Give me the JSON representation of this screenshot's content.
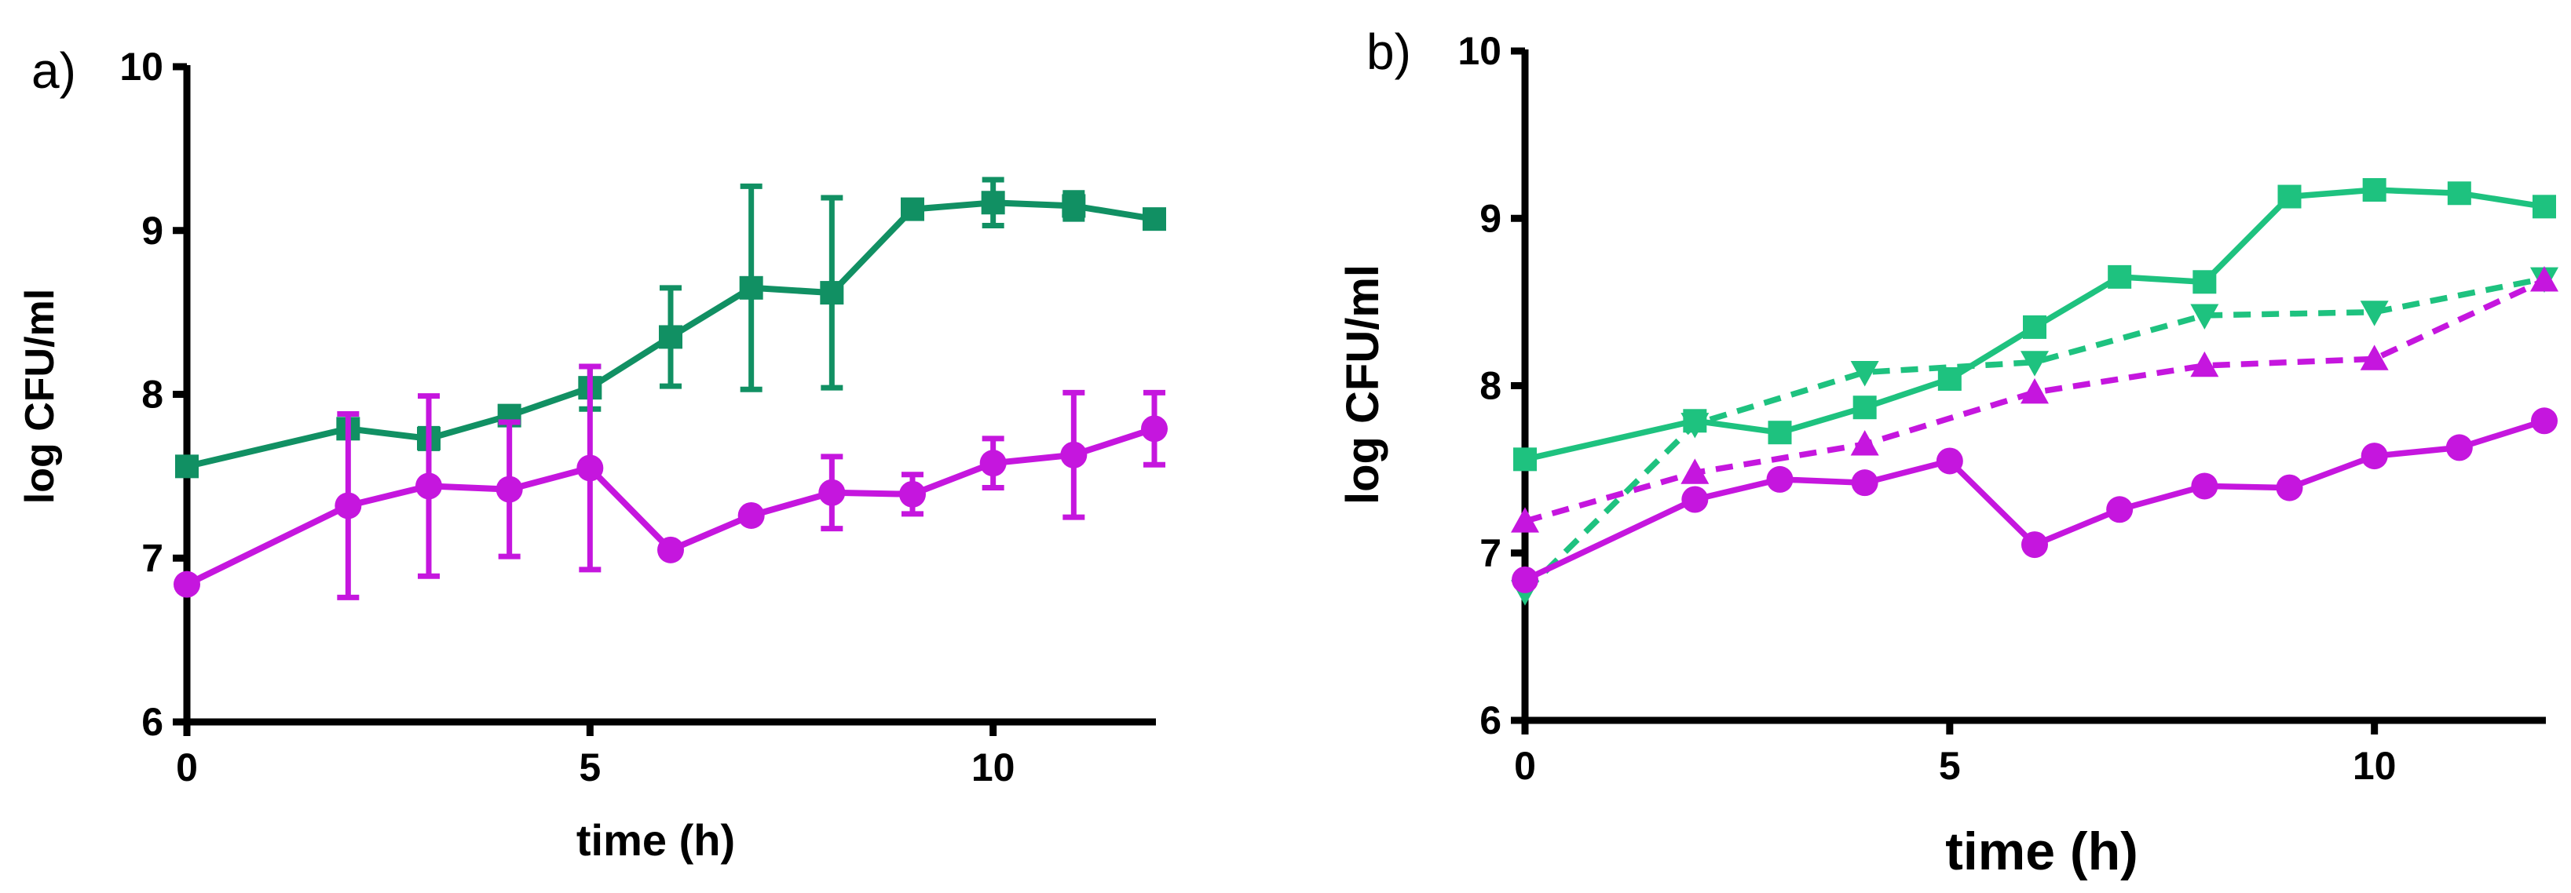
{
  "chart_data": [
    {
      "panel": "a)",
      "type": "line",
      "xlabel": "time (h)",
      "ylabel": "log CFU/ml",
      "xlim": [
        0,
        12
      ],
      "ylim": [
        6,
        10
      ],
      "xticks": [
        0,
        5,
        10
      ],
      "yticks": [
        6,
        7,
        8,
        9,
        10
      ],
      "series": [
        {
          "name": "green squares",
          "color": "#119063",
          "marker": "square",
          "dashed": false,
          "points": [
            {
              "x": 0,
              "y": 7.56
            },
            {
              "x": 2,
              "y": 7.79,
              "err": 0.05
            },
            {
              "x": 3,
              "y": 7.73,
              "err": 0.06
            },
            {
              "x": 4,
              "y": 7.87,
              "err": 0.04
            },
            {
              "x": 5,
              "y": 8.04,
              "err": 0.13
            },
            {
              "x": 6,
              "y": 8.35,
              "err": 0.3
            },
            {
              "x": 7,
              "y": 8.65,
              "err": 0.62
            },
            {
              "x": 8,
              "y": 8.62,
              "err": 0.58
            },
            {
              "x": 9,
              "y": 9.13,
              "err": 0.04
            },
            {
              "x": 10,
              "y": 9.17,
              "err": 0.14
            },
            {
              "x": 11,
              "y": 9.15,
              "err": 0.08
            },
            {
              "x": 12,
              "y": 9.07
            }
          ]
        },
        {
          "name": "magenta circles",
          "color": "#c516de",
          "marker": "circle",
          "dashed": false,
          "points": [
            {
              "x": 0,
              "y": 6.84
            },
            {
              "x": 2,
              "y": 7.32,
              "err": 0.56
            },
            {
              "x": 3,
              "y": 7.44,
              "err": 0.55
            },
            {
              "x": 4,
              "y": 7.42,
              "err": 0.41
            },
            {
              "x": 5,
              "y": 7.55,
              "err": 0.62
            },
            {
              "x": 6,
              "y": 7.05
            },
            {
              "x": 7,
              "y": 7.26
            },
            {
              "x": 8,
              "y": 7.4,
              "err": 0.22
            },
            {
              "x": 9,
              "y": 7.39,
              "err": 0.12
            },
            {
              "x": 10,
              "y": 7.58,
              "err": 0.15
            },
            {
              "x": 11,
              "y": 7.63,
              "err": 0.38
            },
            {
              "x": 12,
              "y": 7.79,
              "err": 0.22
            }
          ]
        }
      ]
    },
    {
      "panel": "b)",
      "type": "line",
      "xlabel": "time (h)",
      "ylabel": "log CFU/ml",
      "xlim": [
        0,
        12
      ],
      "ylim": [
        6,
        10
      ],
      "xticks": [
        0,
        5,
        10
      ],
      "yticks": [
        6,
        7,
        8,
        9,
        10
      ],
      "series": [
        {
          "name": "green squares",
          "color": "#1ec27f",
          "marker": "square",
          "dashed": false,
          "points": [
            {
              "x": 0,
              "y": 7.56
            },
            {
              "x": 2,
              "y": 7.79
            },
            {
              "x": 3,
              "y": 7.72
            },
            {
              "x": 4,
              "y": 7.87
            },
            {
              "x": 5,
              "y": 8.04
            },
            {
              "x": 6,
              "y": 8.35
            },
            {
              "x": 7,
              "y": 8.65
            },
            {
              "x": 8,
              "y": 8.62
            },
            {
              "x": 9,
              "y": 9.13
            },
            {
              "x": 10,
              "y": 9.17
            },
            {
              "x": 11,
              "y": 9.15
            },
            {
              "x": 12,
              "y": 9.07
            }
          ]
        },
        {
          "name": "green triangles down (dashed)",
          "color": "#1ec27f",
          "marker": "triangle-down",
          "dashed": true,
          "points": [
            {
              "x": 0,
              "y": 6.77
            },
            {
              "x": 2,
              "y": 7.77
            },
            {
              "x": 4,
              "y": 8.08
            },
            {
              "x": 6,
              "y": 8.14
            },
            {
              "x": 8,
              "y": 8.42
            },
            {
              "x": 10,
              "y": 8.44
            },
            {
              "x": 12,
              "y": 8.64
            }
          ]
        },
        {
          "name": "magenta triangles up (dashed)",
          "color": "#c516de",
          "marker": "triangle-up",
          "dashed": true,
          "points": [
            {
              "x": 0,
              "y": 7.19
            },
            {
              "x": 2,
              "y": 7.48
            },
            {
              "x": 4,
              "y": 7.65
            },
            {
              "x": 6,
              "y": 7.96
            },
            {
              "x": 8,
              "y": 8.12
            },
            {
              "x": 10,
              "y": 8.16
            },
            {
              "x": 12,
              "y": 8.63
            }
          ]
        },
        {
          "name": "magenta circles",
          "color": "#c516de",
          "marker": "circle",
          "dashed": false,
          "points": [
            {
              "x": 0,
              "y": 6.84
            },
            {
              "x": 2,
              "y": 7.32
            },
            {
              "x": 3,
              "y": 7.44
            },
            {
              "x": 4,
              "y": 7.42
            },
            {
              "x": 5,
              "y": 7.55
            },
            {
              "x": 6,
              "y": 7.05
            },
            {
              "x": 7,
              "y": 7.26
            },
            {
              "x": 8,
              "y": 7.4
            },
            {
              "x": 9,
              "y": 7.39
            },
            {
              "x": 10,
              "y": 7.58
            },
            {
              "x": 11,
              "y": 7.63
            },
            {
              "x": 12,
              "y": 7.79
            }
          ]
        }
      ]
    }
  ]
}
